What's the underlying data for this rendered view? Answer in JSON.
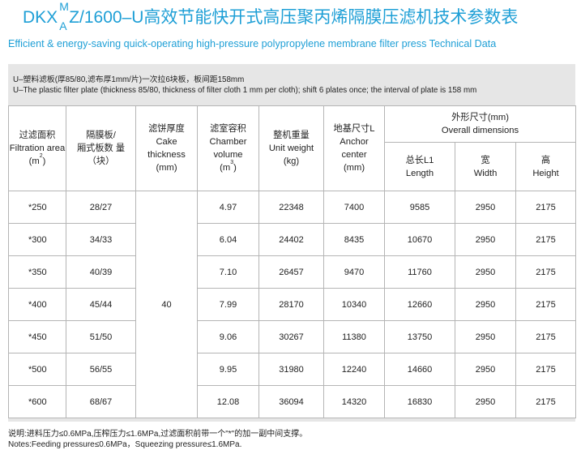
{
  "title": {
    "prefix": "DKX",
    "sup": "M",
    "sub": "A",
    "suffix": "Z/1600–U高效节能快开式高压聚丙烯隔膜压滤机技术参数表"
  },
  "subtitle": "Efficient & energy-saving quick-operating high-pressure polypropylene membrane filter press Technical Data",
  "intro": {
    "line_cn": "U–塑料滤板(厚85/80,滤布厚1mm/片)一次拉6块板，板间距158mm",
    "line_en": "U–The plastic filter plate (thickness 85/80, thickness of filter cloth 1 mm per cloth); shift 6 plates once; the interval of plate is 158 mm"
  },
  "headers": {
    "area": {
      "cn": "过滤面积",
      "en": "Filtration area",
      "unit_pre": "(m",
      "unit_sup": "2",
      "unit_post": ")"
    },
    "plates": {
      "cn1": "隔膜板/",
      "cn2": "厢式板数 量",
      "unit": "（块）"
    },
    "cake": {
      "cn": "滤饼厚度",
      "en1": "Cake",
      "en2": "thickness",
      "unit": "(mm)"
    },
    "chamber": {
      "cn": "滤室容积",
      "en1": "Chamber",
      "en2": "volume",
      "unit_pre": "(m",
      "unit_sup": "3",
      "unit_post": ")"
    },
    "weight": {
      "cn": "整机重量",
      "en": "Unit weight",
      "unit": "(kg)"
    },
    "anchor": {
      "cn": "地基尺寸L",
      "en1": "Anchor",
      "en2": "center",
      "unit": "(mm)"
    },
    "overall": {
      "cn": "外形尺寸(mm)",
      "en": "Overall  dimensions"
    },
    "length": {
      "cn": "总长L1",
      "en": "Length"
    },
    "width": {
      "cn": "宽",
      "en": "Width"
    },
    "height": {
      "cn": "高",
      "en": "Height"
    }
  },
  "cake_thickness": "40",
  "rows": [
    {
      "area": "*250",
      "plates": "28/27",
      "chamber": "4.97",
      "weight": "22348",
      "anchor": "7400",
      "length": "9585",
      "width": "2950",
      "height": "2175"
    },
    {
      "area": "*300",
      "plates": "34/33",
      "chamber": "6.04",
      "weight": "24402",
      "anchor": "8435",
      "length": "10670",
      "width": "2950",
      "height": "2175"
    },
    {
      "area": "*350",
      "plates": "40/39",
      "chamber": "7.10",
      "weight": "26457",
      "anchor": "9470",
      "length": "11760",
      "width": "2950",
      "height": "2175"
    },
    {
      "area": "*400",
      "plates": "45/44",
      "chamber": "7.99",
      "weight": "28170",
      "anchor": "10340",
      "length": "12660",
      "width": "2950",
      "height": "2175"
    },
    {
      "area": "*450",
      "plates": "51/50",
      "chamber": "9.06",
      "weight": "30267",
      "anchor": "11380",
      "length": "13750",
      "width": "2950",
      "height": "2175"
    },
    {
      "area": "*500",
      "plates": "56/55",
      "chamber": "9.95",
      "weight": "31980",
      "anchor": "12240",
      "length": "14660",
      "width": "2950",
      "height": "2175"
    },
    {
      "area": "*600",
      "plates": "68/67",
      "chamber": "12.08",
      "weight": "36094",
      "anchor": "14320",
      "length": "16830",
      "width": "2950",
      "height": "2175"
    }
  ],
  "notes": {
    "cn": "说明:进料压力≤0.6MPa,压榨压力≤1.6MPa,过滤面积前带一个\"*\"的加一副中间支撑。",
    "en": "Notes:Feeding pressure≤0.6MPa，Squeezing pressure≤1.6MPa."
  }
}
